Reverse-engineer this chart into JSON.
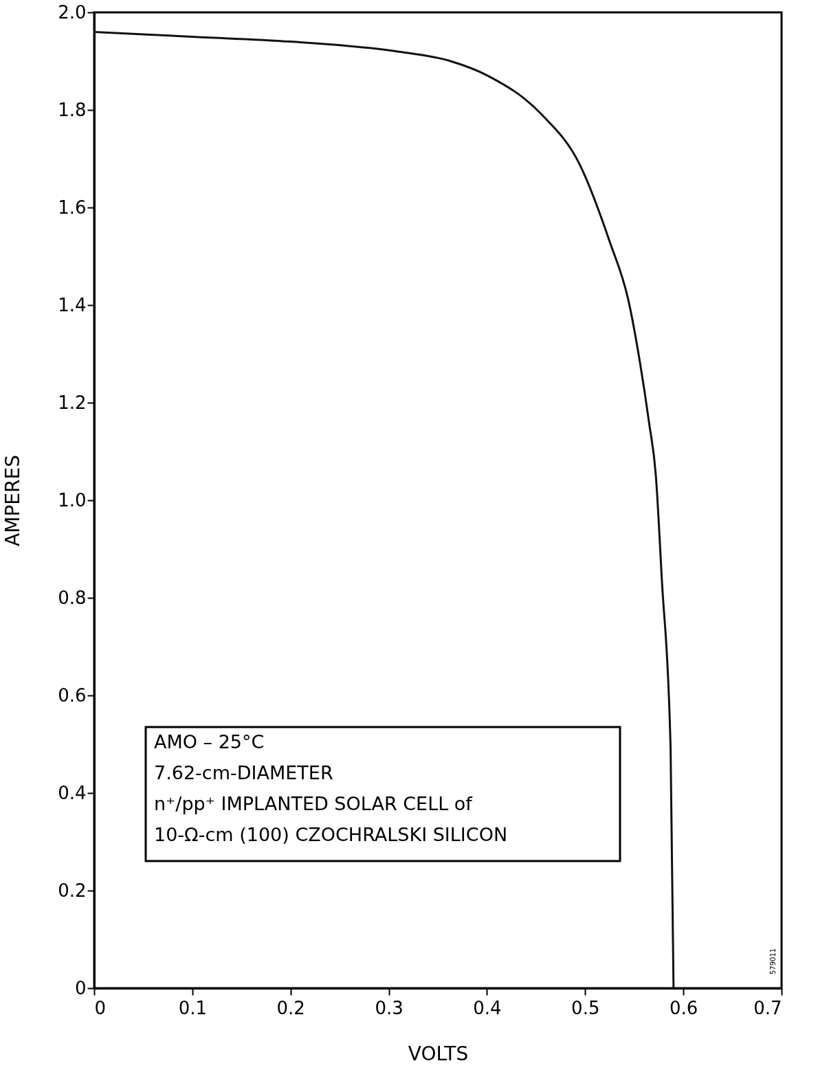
{
  "chart_data": {
    "type": "line",
    "xlabel": "VOLTS",
    "ylabel": "AMPERES",
    "x": [
      0,
      0.1,
      0.2,
      0.308,
      0.363,
      0.401,
      0.456,
      0.494,
      0.525,
      0.544,
      0.556,
      0.565,
      0.572,
      0.578,
      0.587,
      0.59
    ],
    "series": [
      {
        "color": "#111111",
        "values": [
          1.96,
          1.95,
          1.94,
          1.92,
          1.9,
          1.87,
          1.79,
          1.69,
          1.53,
          1.41,
          1.28,
          1.16,
          1.05,
          0.84,
          0.49,
          0
        ]
      }
    ],
    "xlim": [
      0,
      0.7
    ],
    "xticks": [
      0,
      0.1,
      0.2,
      0.3,
      0.4,
      0.5,
      0.6,
      0.7
    ],
    "ylim": [
      0,
      2.0
    ],
    "yticks": [
      0,
      0.2,
      0.4,
      0.6,
      0.8,
      {
        "value": 1.0,
        "label": "1.0"
      },
      1.2,
      1.4,
      1.6,
      1.8,
      {
        "value": 2.0,
        "label": "2.0"
      }
    ],
    "grid": false,
    "marker": "none",
    "line_style": "solid",
    "annotations": [
      "AMO – 25°C",
      "7.62-cm-DIAMETER",
      "n⁺/pp⁺ IMPLANTED  SOLAR CELL of",
      "10-Ω-cm (100) CZOCHRALSKI  SILICON",
      "579011"
    ]
  }
}
